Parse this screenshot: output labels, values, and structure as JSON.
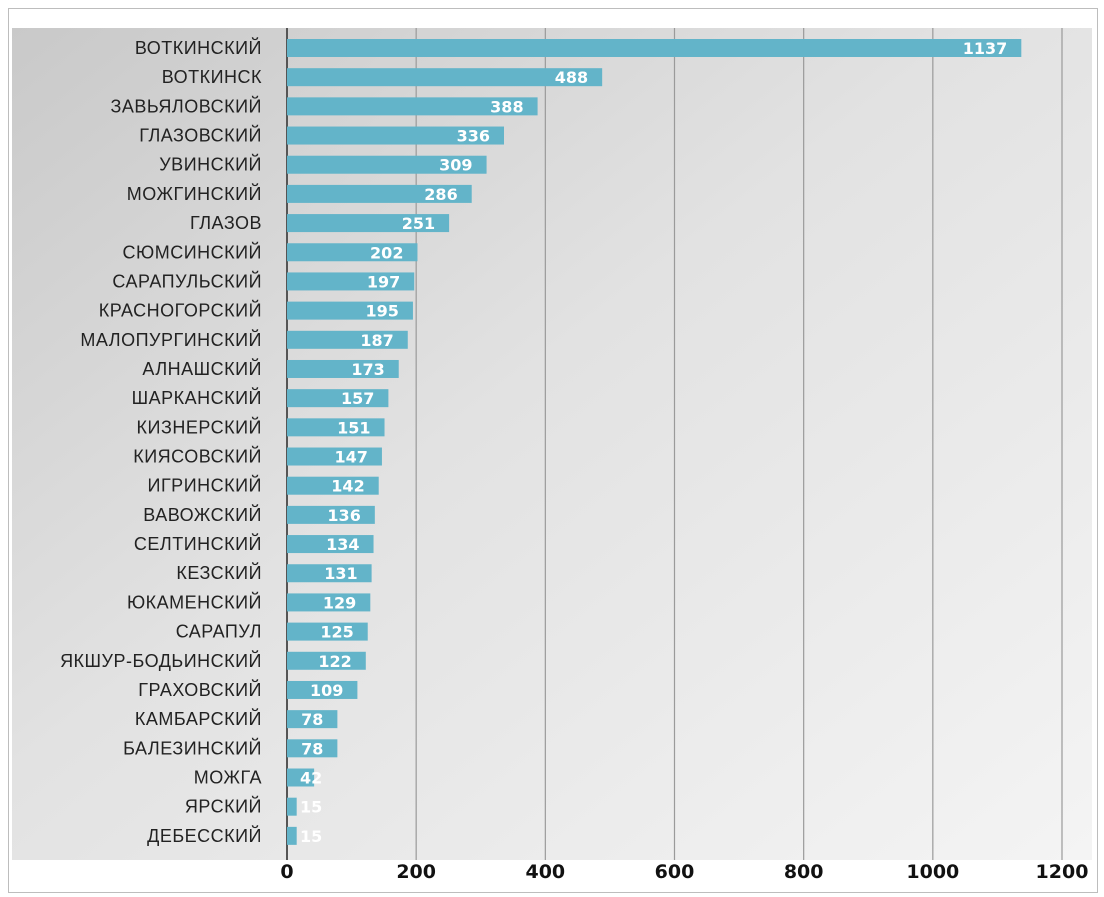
{
  "chart_data": {
    "type": "bar",
    "orientation": "horizontal",
    "title": "",
    "xlabel": "",
    "ylabel": "",
    "xlim": [
      0,
      1200
    ],
    "x_ticks": [
      0,
      200,
      400,
      600,
      800,
      1000,
      1200
    ],
    "grid": true,
    "legend": "none",
    "bar_color": "#63b4c9",
    "categories": [
      "ВОТКИНСКИЙ",
      "ВОТКИНСК",
      "ЗАВЬЯЛОВСКИЙ",
      "ГЛАЗОВСКИЙ",
      "УВИНСКИЙ",
      "МОЖГИНСКИЙ",
      "ГЛАЗОВ",
      "СЮМСИНСКИЙ",
      "САРАПУЛЬСКИЙ",
      "КРАСНОГОРСКИЙ",
      "МАЛОПУРГИНСКИЙ",
      "АЛНАШСКИЙ",
      "ШАРКАНСКИЙ",
      "КИЗНЕРСКИЙ",
      "КИЯСОВСКИЙ",
      "ИГРИНСКИЙ",
      "ВАВОЖСКИЙ",
      "СЕЛТИНСКИЙ",
      "КЕЗСКИЙ",
      "ЮКАМЕНСКИЙ",
      "САРАПУЛ",
      "ЯКШУР-БОДЬИНСКИЙ",
      "ГРАХОВСКИЙ",
      "КАМБАРСКИЙ",
      "БАЛЕЗИНСКИЙ",
      "МОЖГА",
      "ЯРСКИЙ",
      "ДЕБЕССКИЙ"
    ],
    "values": [
      1137,
      488,
      388,
      336,
      309,
      286,
      251,
      202,
      197,
      195,
      187,
      173,
      157,
      151,
      147,
      142,
      136,
      134,
      131,
      129,
      125,
      122,
      109,
      78,
      78,
      42,
      15,
      15
    ]
  }
}
